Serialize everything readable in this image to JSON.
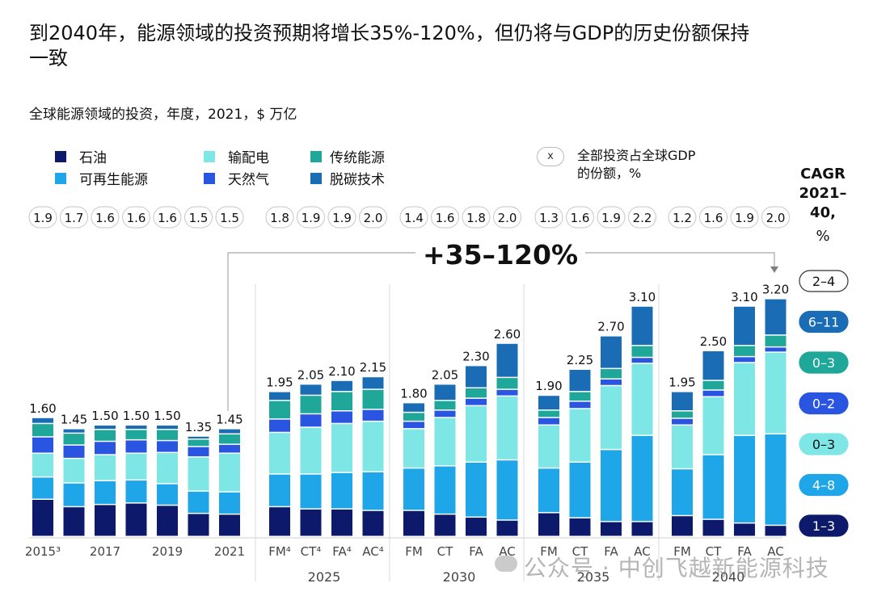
{
  "title": "到2040年，能源领域的投资预期将增长35%-120%，但仍将与GDP的历史份额保持一致",
  "subtitle": "全球能源领域的投资，年度，2021，$ 万亿",
  "legend": [
    {
      "name": "石油",
      "color": "#0d1a6b"
    },
    {
      "name": "可再生能源",
      "color": "#1fa6e8"
    },
    {
      "name": "输配电",
      "color": "#7fe6e6"
    },
    {
      "name": "天然气",
      "color": "#2a55e0"
    },
    {
      "name": "传统能源",
      "color": "#1fa89a"
    },
    {
      "name": "脱碳技术",
      "color": "#1a6db5"
    }
  ],
  "x_note": {
    "badge": "x",
    "text_line1": "全部投资占全球GDP",
    "text_line2": "的份额，%"
  },
  "cagr": {
    "heading_line1": "CAGR",
    "heading_line2": "2021–",
    "heading_line3": "40,",
    "unit": "%",
    "rows": [
      {
        "label": "2–4",
        "color": "#ffffff",
        "text_color": "#111111"
      },
      {
        "label": "6–11",
        "color": "#1a6db5",
        "text_color": "#ffffff"
      },
      {
        "label": "0–3",
        "color": "#1fa89a",
        "text_color": "#ffffff"
      },
      {
        "label": "0–2",
        "color": "#2a55e0",
        "text_color": "#ffffff"
      },
      {
        "label": "0–3",
        "color": "#7fe6e6",
        "text_color": "#111111"
      },
      {
        "label": "4–8",
        "color": "#1fa6e8",
        "text_color": "#ffffff"
      },
      {
        "label": "1–3",
        "color": "#0d1a6b",
        "text_color": "#ffffff"
      }
    ]
  },
  "growth_label": "+35–120%",
  "watermark": "公众号 · 中创飞越新能源科技",
  "chart_data": {
    "type": "bar",
    "stacked": true,
    "unit": "$ 万亿",
    "series": [
      {
        "name": "石油",
        "color": "#0d1a6b"
      },
      {
        "name": "可再生能源",
        "color": "#1fa6e8"
      },
      {
        "name": "输配电",
        "color": "#7fe6e6"
      },
      {
        "name": "天然气",
        "color": "#2a55e0"
      },
      {
        "name": "传统能源",
        "color": "#1fa89a"
      },
      {
        "name": "脱碳技术",
        "color": "#1a6db5"
      }
    ],
    "groups": [
      {
        "label": "",
        "bars": [
          {
            "label": "2015³",
            "total": "1.60",
            "gdp": "1.9",
            "values": [
              0.5,
              0.3,
              0.32,
              0.22,
              0.18,
              0.08
            ]
          },
          {
            "label": "",
            "total": "1.45",
            "gdp": "1.7",
            "values": [
              0.4,
              0.32,
              0.33,
              0.18,
              0.16,
              0.06
            ]
          },
          {
            "label": "2017",
            "total": "1.50",
            "gdp": "1.6",
            "values": [
              0.43,
              0.32,
              0.35,
              0.18,
              0.16,
              0.06
            ]
          },
          {
            "label": "",
            "total": "1.50",
            "gdp": "1.6",
            "values": [
              0.45,
              0.31,
              0.36,
              0.18,
              0.14,
              0.06
            ]
          },
          {
            "label": "2019",
            "total": "1.50",
            "gdp": "1.6",
            "values": [
              0.42,
              0.29,
              0.42,
              0.16,
              0.15,
              0.06
            ]
          },
          {
            "label": "",
            "total": "1.35",
            "gdp": "1.5",
            "values": [
              0.31,
              0.3,
              0.46,
              0.14,
              0.1,
              0.04
            ]
          },
          {
            "label": "2021",
            "total": "1.45",
            "gdp": "1.5",
            "values": [
              0.3,
              0.3,
              0.52,
              0.12,
              0.14,
              0.07
            ]
          }
        ]
      },
      {
        "label": "2025",
        "bars": [
          {
            "label": "FM⁴",
            "total": "1.95",
            "gdp": "1.8",
            "values": [
              0.4,
              0.44,
              0.56,
              0.18,
              0.25,
              0.12
            ]
          },
          {
            "label": "CT⁴",
            "total": "2.05",
            "gdp": "1.9",
            "values": [
              0.37,
              0.47,
              0.63,
              0.18,
              0.25,
              0.15
            ]
          },
          {
            "label": "FA⁴",
            "total": "2.10",
            "gdp": "1.9",
            "values": [
              0.37,
              0.49,
              0.66,
              0.17,
              0.26,
              0.15
            ]
          },
          {
            "label": "AC⁴",
            "total": "2.15",
            "gdp": "2.0",
            "values": [
              0.35,
              0.52,
              0.68,
              0.16,
              0.27,
              0.17
            ]
          }
        ]
      },
      {
        "label": "2030",
        "bars": [
          {
            "label": "FM",
            "total": "1.80",
            "gdp": "1.4",
            "values": [
              0.35,
              0.57,
              0.53,
              0.1,
              0.12,
              0.13
            ]
          },
          {
            "label": "CT",
            "total": "2.05",
            "gdp": "1.6",
            "values": [
              0.3,
              0.65,
              0.65,
              0.1,
              0.13,
              0.22
            ]
          },
          {
            "label": "FA",
            "total": "2.30",
            "gdp": "1.8",
            "values": [
              0.26,
              0.74,
              0.76,
              0.1,
              0.14,
              0.3
            ]
          },
          {
            "label": "AC",
            "total": "2.60",
            "gdp": "2.0",
            "values": [
              0.22,
              0.81,
              0.86,
              0.09,
              0.16,
              0.46
            ]
          }
        ]
      },
      {
        "label": "2035",
        "bars": [
          {
            "label": "FM",
            "total": "1.90",
            "gdp": "1.3",
            "values": [
              0.32,
              0.6,
              0.58,
              0.1,
              0.1,
              0.2
            ]
          },
          {
            "label": "CT",
            "total": "2.25",
            "gdp": "1.6",
            "values": [
              0.25,
              0.75,
              0.72,
              0.1,
              0.13,
              0.3
            ]
          },
          {
            "label": "FA",
            "total": "2.70",
            "gdp": "1.9",
            "values": [
              0.2,
              0.97,
              0.86,
              0.09,
              0.14,
              0.44
            ]
          },
          {
            "label": "AC",
            "total": "3.10",
            "gdp": "2.2",
            "values": [
              0.2,
              1.16,
              0.97,
              0.08,
              0.16,
              0.53
            ]
          }
        ]
      },
      {
        "label": "2040",
        "bars": [
          {
            "label": "FM",
            "total": "1.95",
            "gdp": "1.2",
            "values": [
              0.28,
              0.63,
              0.59,
              0.09,
              0.1,
              0.26
            ]
          },
          {
            "label": "CT",
            "total": "2.50",
            "gdp": "1.6",
            "values": [
              0.23,
              0.87,
              0.78,
              0.09,
              0.13,
              0.4
            ]
          },
          {
            "label": "FA",
            "total": "3.10",
            "gdp": "1.9",
            "values": [
              0.18,
              1.18,
              0.98,
              0.08,
              0.15,
              0.53
            ]
          },
          {
            "label": "AC",
            "total": "3.20",
            "gdp": "2.0",
            "values": [
              0.15,
              1.23,
              1.1,
              0.07,
              0.16,
              0.49
            ]
          }
        ]
      }
    ]
  }
}
